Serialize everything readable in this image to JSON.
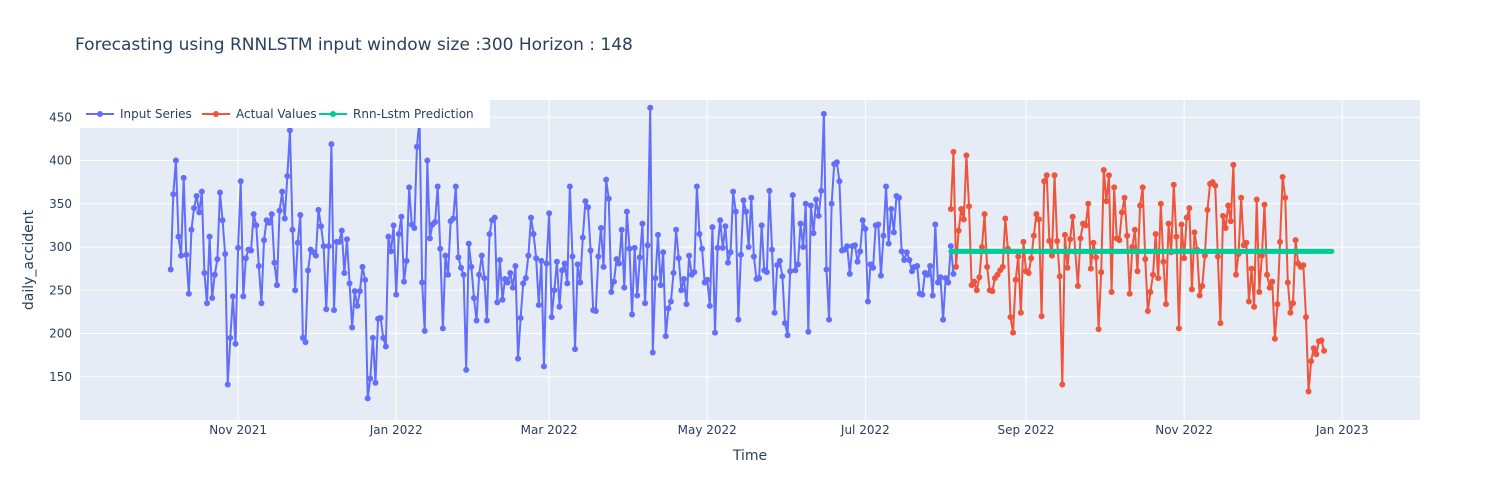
{
  "chart_data": {
    "type": "line",
    "title": "Forecasting using RNNLSTM input window size :300  Horizon : 148",
    "xlabel": "Time",
    "ylabel": "daily_accident",
    "x_range": [
      "2021-09-01",
      "2023-01-31"
    ],
    "ylim": [
      100,
      470
    ],
    "y_ticks": [
      150,
      200,
      250,
      300,
      350,
      400,
      450
    ],
    "x_ticks": [
      {
        "date": "2021-11-01",
        "label": "Nov 2021"
      },
      {
        "date": "2022-01-01",
        "label": "Jan 2022"
      },
      {
        "date": "2022-03-01",
        "label": "Mar 2022"
      },
      {
        "date": "2022-05-01",
        "label": "May 2022"
      },
      {
        "date": "2022-07-01",
        "label": "Jul 2022"
      },
      {
        "date": "2022-09-01",
        "label": "Sep 2022"
      },
      {
        "date": "2022-11-01",
        "label": "Nov 2022"
      },
      {
        "date": "2023-01-01",
        "label": "Jan 2023"
      }
    ],
    "grid": true,
    "legend_position": "top-left",
    "series": [
      {
        "name": "Input Series",
        "color": "#636efa",
        "mode": "lines+markers",
        "start": "2021-10-06",
        "values": [
          274,
          361,
          400,
          312,
          290,
          380,
          291,
          246,
          320,
          345,
          359,
          340,
          364,
          270,
          235,
          312,
          241,
          268,
          286,
          363,
          331,
          292,
          141,
          195,
          243,
          188,
          299,
          376,
          243,
          287,
          297,
          296,
          338,
          325,
          278,
          235,
          308,
          331,
          328,
          338,
          282,
          256,
          342,
          364,
          333,
          382,
          435,
          320,
          250,
          305,
          337,
          195,
          190,
          273,
          297,
          294,
          290,
          343,
          324,
          301,
          228,
          301,
          419,
          227,
          306,
          306,
          319,
          270,
          309,
          258,
          207,
          249,
          232,
          249,
          277,
          262,
          125,
          148,
          195,
          143,
          217,
          218,
          195,
          185,
          312,
          295,
          325,
          245,
          315,
          335,
          260,
          284,
          369,
          326,
          322,
          416,
          448,
          259,
          203,
          400,
          310,
          326,
          329,
          370,
          298,
          206,
          290,
          268,
          330,
          333,
          370,
          288,
          276,
          268,
          158,
          304,
          277,
          241,
          215,
          268,
          290,
          264,
          215,
          315,
          331,
          334,
          236,
          285,
          239,
          263,
          259,
          270,
          253,
          278,
          171,
          218,
          258,
          264,
          290,
          334,
          315,
          287,
          233,
          284,
          162,
          281,
          339,
          219,
          250,
          283,
          231,
          273,
          281,
          258,
          370,
          289,
          182,
          280,
          259,
          311,
          353,
          346,
          296,
          227,
          226,
          289,
          322,
          277,
          378,
          356,
          248,
          260,
          286,
          281,
          320,
          253,
          341,
          298,
          222,
          299,
          244,
          288,
          327,
          235,
          302,
          461,
          178,
          264,
          314,
          256,
          294,
          197,
          229,
          237,
          270,
          320,
          287,
          250,
          263,
          234,
          290,
          268,
          271,
          370,
          315,
          298,
          259,
          262,
          232,
          323,
          201,
          299,
          331,
          299,
          324,
          282,
          294,
          364,
          341,
          216,
          291,
          354,
          341,
          300,
          357,
          289,
          263,
          264,
          325,
          273,
          271,
          365,
          297,
          224,
          279,
          284,
          266,
          212,
          198,
          272,
          360,
          273,
          280,
          327,
          300,
          350,
          202,
          348,
          316,
          355,
          336,
          365,
          454,
          274,
          216,
          350,
          396,
          398,
          376,
          296,
          297,
          301,
          269,
          301,
          302,
          283,
          295,
          331,
          321,
          237,
          280,
          276,
          325,
          326,
          267,
          313,
          370,
          304,
          344,
          317,
          359,
          357,
          295,
          285,
          294,
          285,
          272,
          277,
          278,
          246,
          245,
          270,
          268,
          278,
          244,
          326,
          259,
          265,
          216,
          264,
          259,
          301,
          269
        ]
      },
      {
        "name": "Actual Values",
        "color": "#ef553b",
        "mode": "lines+markers",
        "start": "2022-08-03",
        "values": [
          344,
          410,
          277,
          319,
          344,
          332,
          406,
          347,
          256,
          260,
          250,
          265,
          300,
          338,
          277,
          250,
          249,
          264,
          268,
          273,
          277,
          333,
          298,
          219,
          201,
          262,
          289,
          224,
          306,
          272,
          270,
          287,
          313,
          338,
          332,
          220,
          376,
          383,
          307,
          290,
          383,
          307,
          266,
          141,
          314,
          276,
          309,
          335,
          295,
          255,
          310,
          327,
          325,
          350,
          275,
          305,
          288,
          205,
          271,
          389,
          353,
          383,
          248,
          369,
          310,
          308,
          340,
          357,
          313,
          246,
          300,
          320,
          272,
          348,
          369,
          286,
          226,
          248,
          268,
          315,
          264,
          350,
          283,
          234,
          327,
          294,
          372,
          312,
          206,
          326,
          287,
          334,
          345,
          251,
          317,
          297,
          244,
          255,
          290,
          343,
          373,
          375,
          371,
          289,
          212,
          336,
          322,
          348,
          330,
          395,
          268,
          292,
          357,
          302,
          305,
          237,
          275,
          231,
          355,
          248,
          290,
          349,
          268,
          253,
          260,
          194,
          234,
          306,
          381,
          357,
          259,
          224,
          235,
          308,
          281,
          277,
          279,
          219,
          133,
          168,
          183,
          176,
          191,
          192,
          180
        ]
      },
      {
        "name": "Rnn-Lstm Prediction",
        "color": "#00cc96",
        "mode": "lines+markers",
        "start": "2022-08-03",
        "count": 148,
        "value": 295
      }
    ]
  }
}
